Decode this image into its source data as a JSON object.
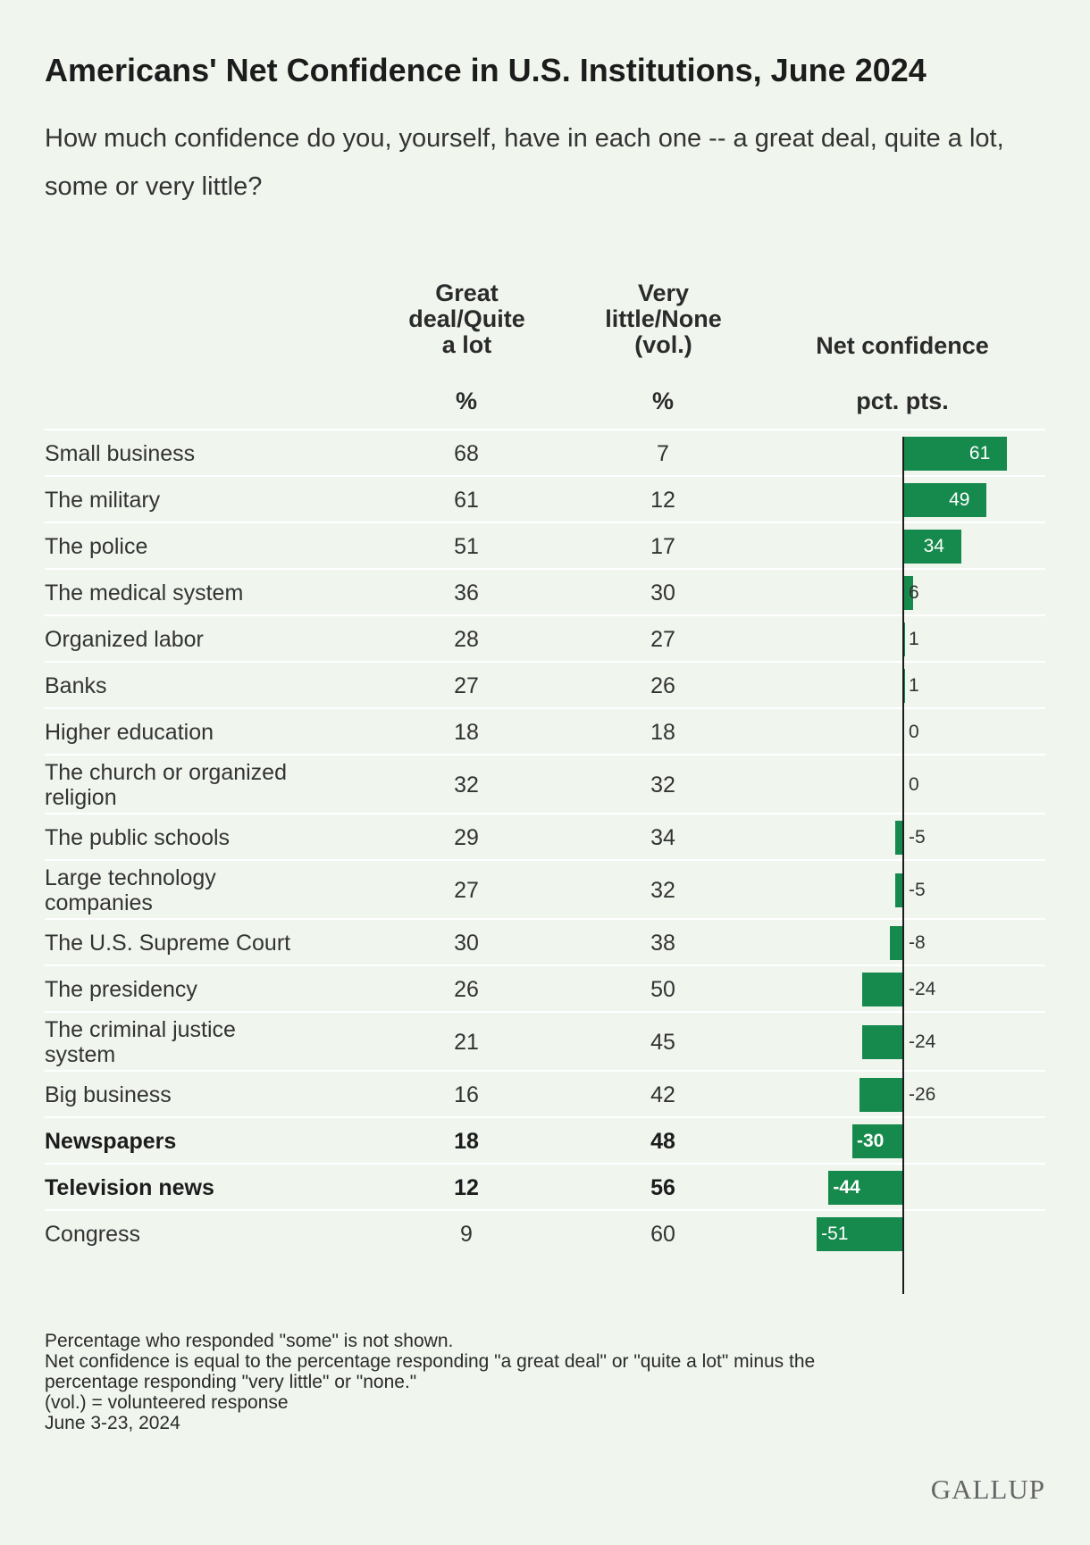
{
  "title": "Americans' Net Confidence in U.S. Institutions, June 2024",
  "subtitle": "How much confidence do you, yourself, have in each one -- a great deal, quite a lot, some or very little?",
  "columns": {
    "great_deal": [
      "Great",
      "deal/Quite",
      "a lot"
    ],
    "very_little": [
      "Very",
      "little/None",
      "(vol.)"
    ],
    "net": "Net confidence",
    "great_deal_unit": "%",
    "very_little_unit": "%",
    "net_unit": "pct. pts."
  },
  "chart_data": {
    "type": "table",
    "title": "Americans' Net Confidence in U.S. Institutions, June 2024",
    "columns": [
      "Great deal/Quite a lot %",
      "Very little/None (vol.) %",
      "Net confidence pct. pts."
    ],
    "bar_color": "#168a4c",
    "rows": [
      {
        "label": [
          "Small business"
        ],
        "great": 68,
        "little": 7,
        "net": 61,
        "bold": false
      },
      {
        "label": [
          "The military"
        ],
        "great": 61,
        "little": 12,
        "net": 49,
        "bold": false
      },
      {
        "label": [
          "The police"
        ],
        "great": 51,
        "little": 17,
        "net": 34,
        "bold": false
      },
      {
        "label": [
          "The medical system"
        ],
        "great": 36,
        "little": 30,
        "net": 6,
        "bold": false
      },
      {
        "label": [
          "Organized labor"
        ],
        "great": 28,
        "little": 27,
        "net": 1,
        "bold": false
      },
      {
        "label": [
          "Banks"
        ],
        "great": 27,
        "little": 26,
        "net": 1,
        "bold": false
      },
      {
        "label": [
          "Higher education"
        ],
        "great": 18,
        "little": 18,
        "net": 0,
        "bold": false
      },
      {
        "label": [
          "The church or organized",
          "religion"
        ],
        "great": 32,
        "little": 32,
        "net": 0,
        "bold": false
      },
      {
        "label": [
          "The public schools"
        ],
        "great": 29,
        "little": 34,
        "net": -5,
        "bold": false
      },
      {
        "label": [
          "Large technology",
          "companies"
        ],
        "great": 27,
        "little": 32,
        "net": -5,
        "bold": false
      },
      {
        "label": [
          "The U.S. Supreme Court"
        ],
        "great": 30,
        "little": 38,
        "net": -8,
        "bold": false
      },
      {
        "label": [
          "The presidency"
        ],
        "great": 26,
        "little": 50,
        "net": -24,
        "bold": false
      },
      {
        "label": [
          "The criminal justice",
          "system"
        ],
        "great": 21,
        "little": 45,
        "net": -24,
        "bold": false
      },
      {
        "label": [
          "Big business"
        ],
        "great": 16,
        "little": 42,
        "net": -26,
        "bold": false
      },
      {
        "label": [
          "Newspapers"
        ],
        "great": 18,
        "little": 48,
        "net": -30,
        "bold": true
      },
      {
        "label": [
          "Television news"
        ],
        "great": 12,
        "little": 56,
        "net": -44,
        "bold": true
      },
      {
        "label": [
          "Congress"
        ],
        "great": 9,
        "little": 60,
        "net": -51,
        "bold": false
      }
    ]
  },
  "footnotes": [
    "Percentage who responded \"some\" is not shown.",
    "Net confidence is equal to the percentage responding \"a great deal\" or \"quite a lot\" minus the",
    "percentage responding \"very little\" or \"none.\"",
    "(vol.) = volunteered response",
    "June 3-23, 2024"
  ],
  "brand": "GALLUP"
}
